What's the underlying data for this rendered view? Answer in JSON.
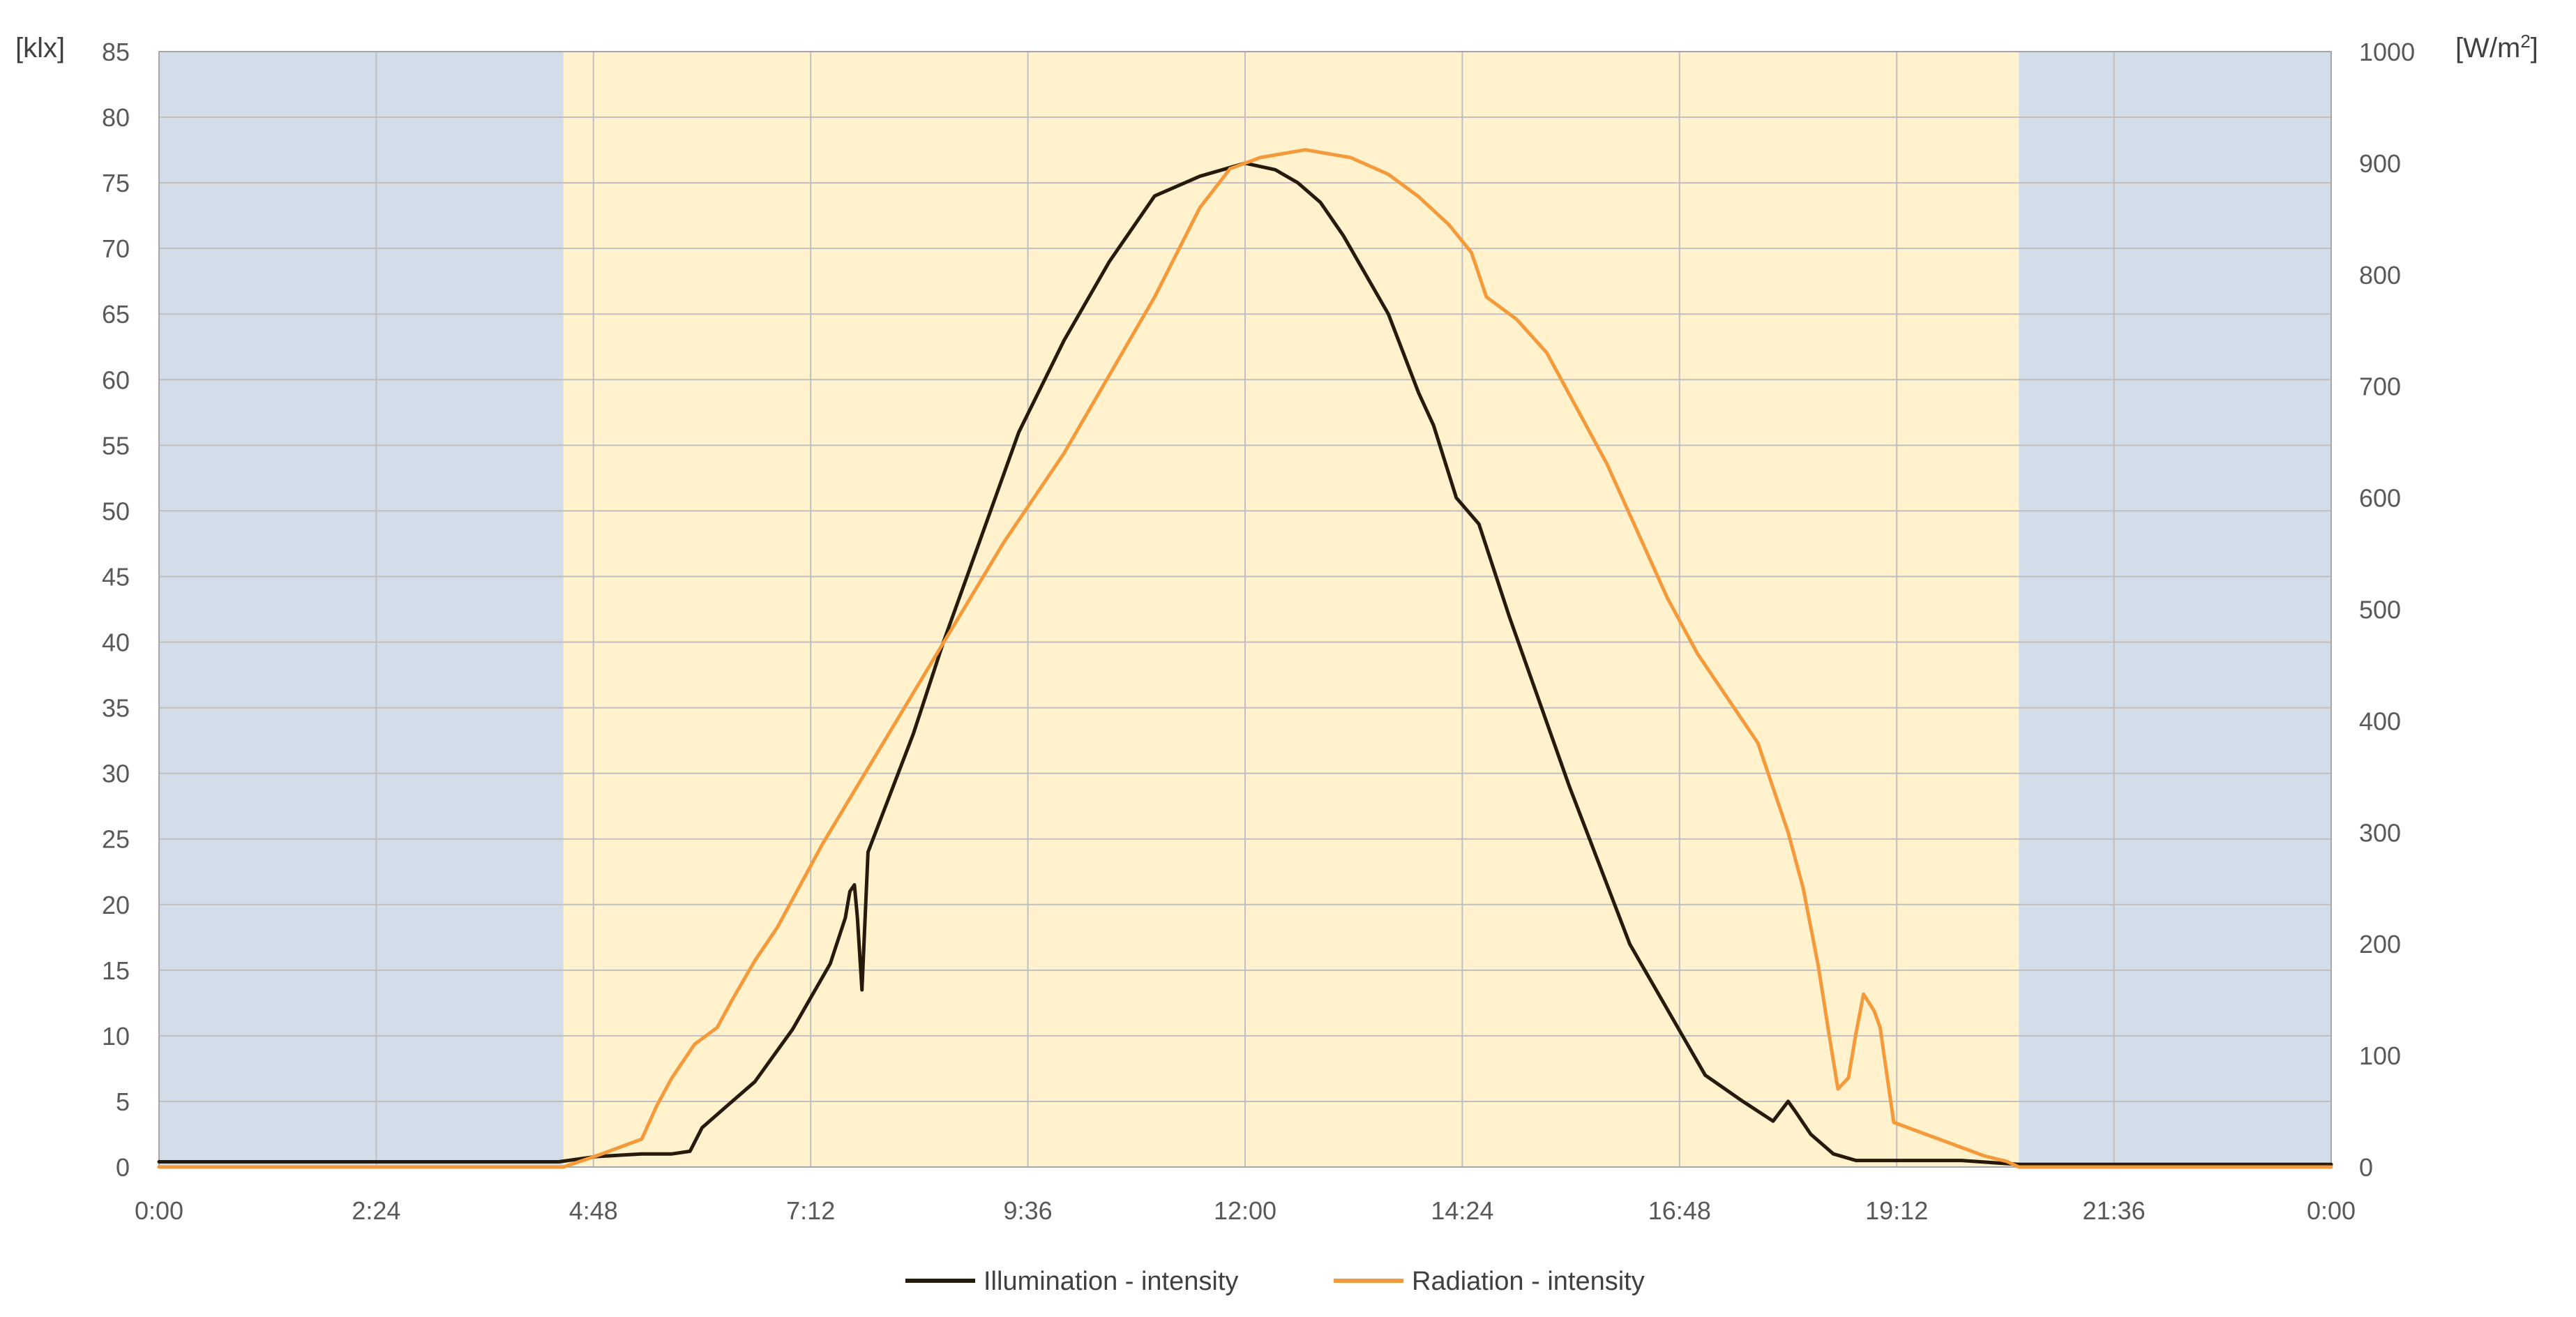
{
  "chart_data": {
    "type": "line",
    "title": "",
    "y_left_label": "[klx]",
    "y_right_label_base": "[W/m",
    "y_right_label_sup": "2",
    "y_right_label_end": "]",
    "x_unit": "minutes of day",
    "xlim": [
      0,
      1440
    ],
    "x_ticks": [
      {
        "label": "0:00",
        "value": 0
      },
      {
        "label": "2:24",
        "value": 144
      },
      {
        "label": "4:48",
        "value": 288
      },
      {
        "label": "7:12",
        "value": 432
      },
      {
        "label": "9:36",
        "value": 576
      },
      {
        "label": "12:00",
        "value": 720
      },
      {
        "label": "14:24",
        "value": 864
      },
      {
        "label": "16:48",
        "value": 1008
      },
      {
        "label": "19:12",
        "value": 1152
      },
      {
        "label": "21:36",
        "value": 1296
      },
      {
        "label": "0:00",
        "value": 1440
      }
    ],
    "y_left_lim": [
      0,
      85
    ],
    "y_left_ticks": [
      0,
      5,
      10,
      15,
      20,
      25,
      30,
      35,
      40,
      45,
      50,
      55,
      60,
      65,
      70,
      75,
      80,
      85
    ],
    "y_right_lim": [
      0,
      1000
    ],
    "y_right_ticks": [
      0,
      100,
      200,
      300,
      400,
      500,
      600,
      700,
      800,
      900,
      1000
    ],
    "grid": true,
    "night_periods": [
      [
        0,
        268
      ],
      [
        1233,
        1440
      ]
    ],
    "colors": {
      "night": "#d3dde9",
      "day": "#fff2cc",
      "illumination": "#261a0a",
      "radiation": "#f59a3a",
      "grid": "#bfbfbf"
    },
    "legend_position": "bottom-center",
    "series": [
      {
        "name": "Illumination - intensity",
        "axis": "left",
        "color": "#261a0a",
        "x": [
          0,
          150,
          265,
          290,
          320,
          340,
          352,
          360,
          375,
          395,
          420,
          445,
          455,
          458,
          461,
          463,
          466,
          470,
          480,
          500,
          520,
          545,
          570,
          600,
          630,
          660,
          690,
          705,
          720,
          740,
          755,
          770,
          785,
          800,
          815,
          825,
          835,
          845,
          860,
          875,
          895,
          915,
          935,
          955,
          975,
          1000,
          1025,
          1050,
          1070,
          1080,
          1085,
          1095,
          1110,
          1125,
          1160,
          1195,
          1220,
          1233,
          1300,
          1440
        ],
        "y": [
          0.4,
          0.4,
          0.4,
          0.8,
          1.0,
          1.0,
          1.2,
          3.0,
          4.5,
          6.5,
          10.5,
          15.5,
          19,
          21,
          21.5,
          19,
          13.5,
          24,
          27,
          33,
          40,
          48,
          56,
          63,
          69,
          74,
          75.5,
          76,
          76.5,
          76,
          75,
          73.5,
          71,
          68,
          65,
          62,
          59,
          56.5,
          51,
          49,
          42,
          35.5,
          29,
          23,
          17,
          12,
          7,
          5,
          3.5,
          5,
          4.2,
          2.5,
          1.0,
          0.5,
          0.5,
          0.5,
          0.3,
          0.2,
          0.2,
          0.2
        ]
      },
      {
        "name": "Radiation - intensity",
        "axis": "right",
        "color": "#f59a3a",
        "x": [
          0,
          150,
          268,
          290,
          310,
          320,
          330,
          340,
          355,
          370,
          380,
          395,
          410,
          440,
          480,
          520,
          560,
          600,
          630,
          660,
          690,
          710,
          730,
          760,
          790,
          815,
          835,
          855,
          870,
          880,
          890,
          900,
          920,
          940,
          960,
          980,
          1000,
          1020,
          1040,
          1060,
          1080,
          1090,
          1100,
          1107,
          1113,
          1120,
          1125,
          1130,
          1137,
          1141,
          1150,
          1170,
          1190,
          1210,
          1225,
          1233,
          1300,
          1440
        ],
        "y": [
          0,
          0,
          0,
          10,
          20,
          25,
          55,
          80,
          110,
          125,
          150,
          185,
          215,
          290,
          380,
          470,
          560,
          640,
          710,
          780,
          860,
          895,
          905,
          912,
          905,
          890,
          870,
          845,
          820,
          780,
          770,
          760,
          730,
          680,
          630,
          570,
          510,
          460,
          420,
          380,
          300,
          250,
          180,
          120,
          70,
          80,
          120,
          155,
          140,
          125,
          40,
          30,
          20,
          10,
          5,
          0,
          0,
          0
        ]
      }
    ]
  }
}
